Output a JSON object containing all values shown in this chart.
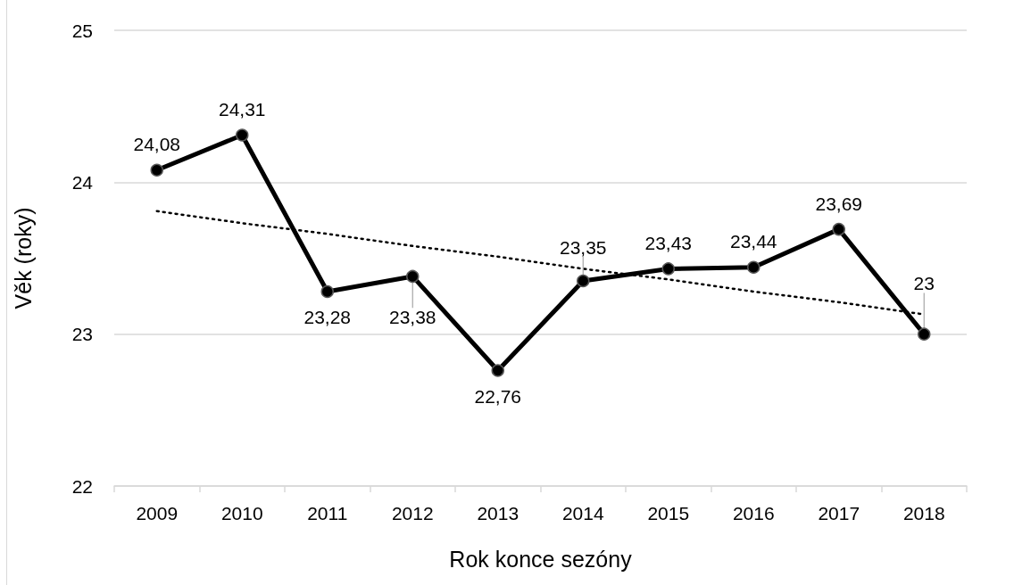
{
  "chart_data": {
    "type": "line",
    "xlabel": "Rok konce sezóny",
    "ylabel": "Věk (roky)",
    "categories": [
      "2009",
      "2010",
      "2011",
      "2012",
      "2013",
      "2014",
      "2015",
      "2016",
      "2017",
      "2018"
    ],
    "series": [
      {
        "color": "#000000",
        "marker": "circle",
        "line_style": "solid",
        "values": [
          24.08,
          24.31,
          23.28,
          23.38,
          22.76,
          23.35,
          23.43,
          23.44,
          23.69,
          23.0
        ],
        "value_labels": [
          "24,08",
          "24,31",
          "23,28",
          "23,38",
          "22,76",
          "23,35",
          "23,43",
          "23,44",
          "23,69",
          "23"
        ]
      },
      {
        "type": "line",
        "color": "#000000",
        "marker": "none",
        "line_style": "dotted",
        "values": [
          23.81,
          23.73,
          23.66,
          23.58,
          23.51,
          23.43,
          23.36,
          23.28,
          23.21,
          23.13
        ]
      }
    ],
    "ylim": [
      22,
      25
    ],
    "yticks": [
      22,
      23,
      24,
      25
    ],
    "grid": "y"
  }
}
